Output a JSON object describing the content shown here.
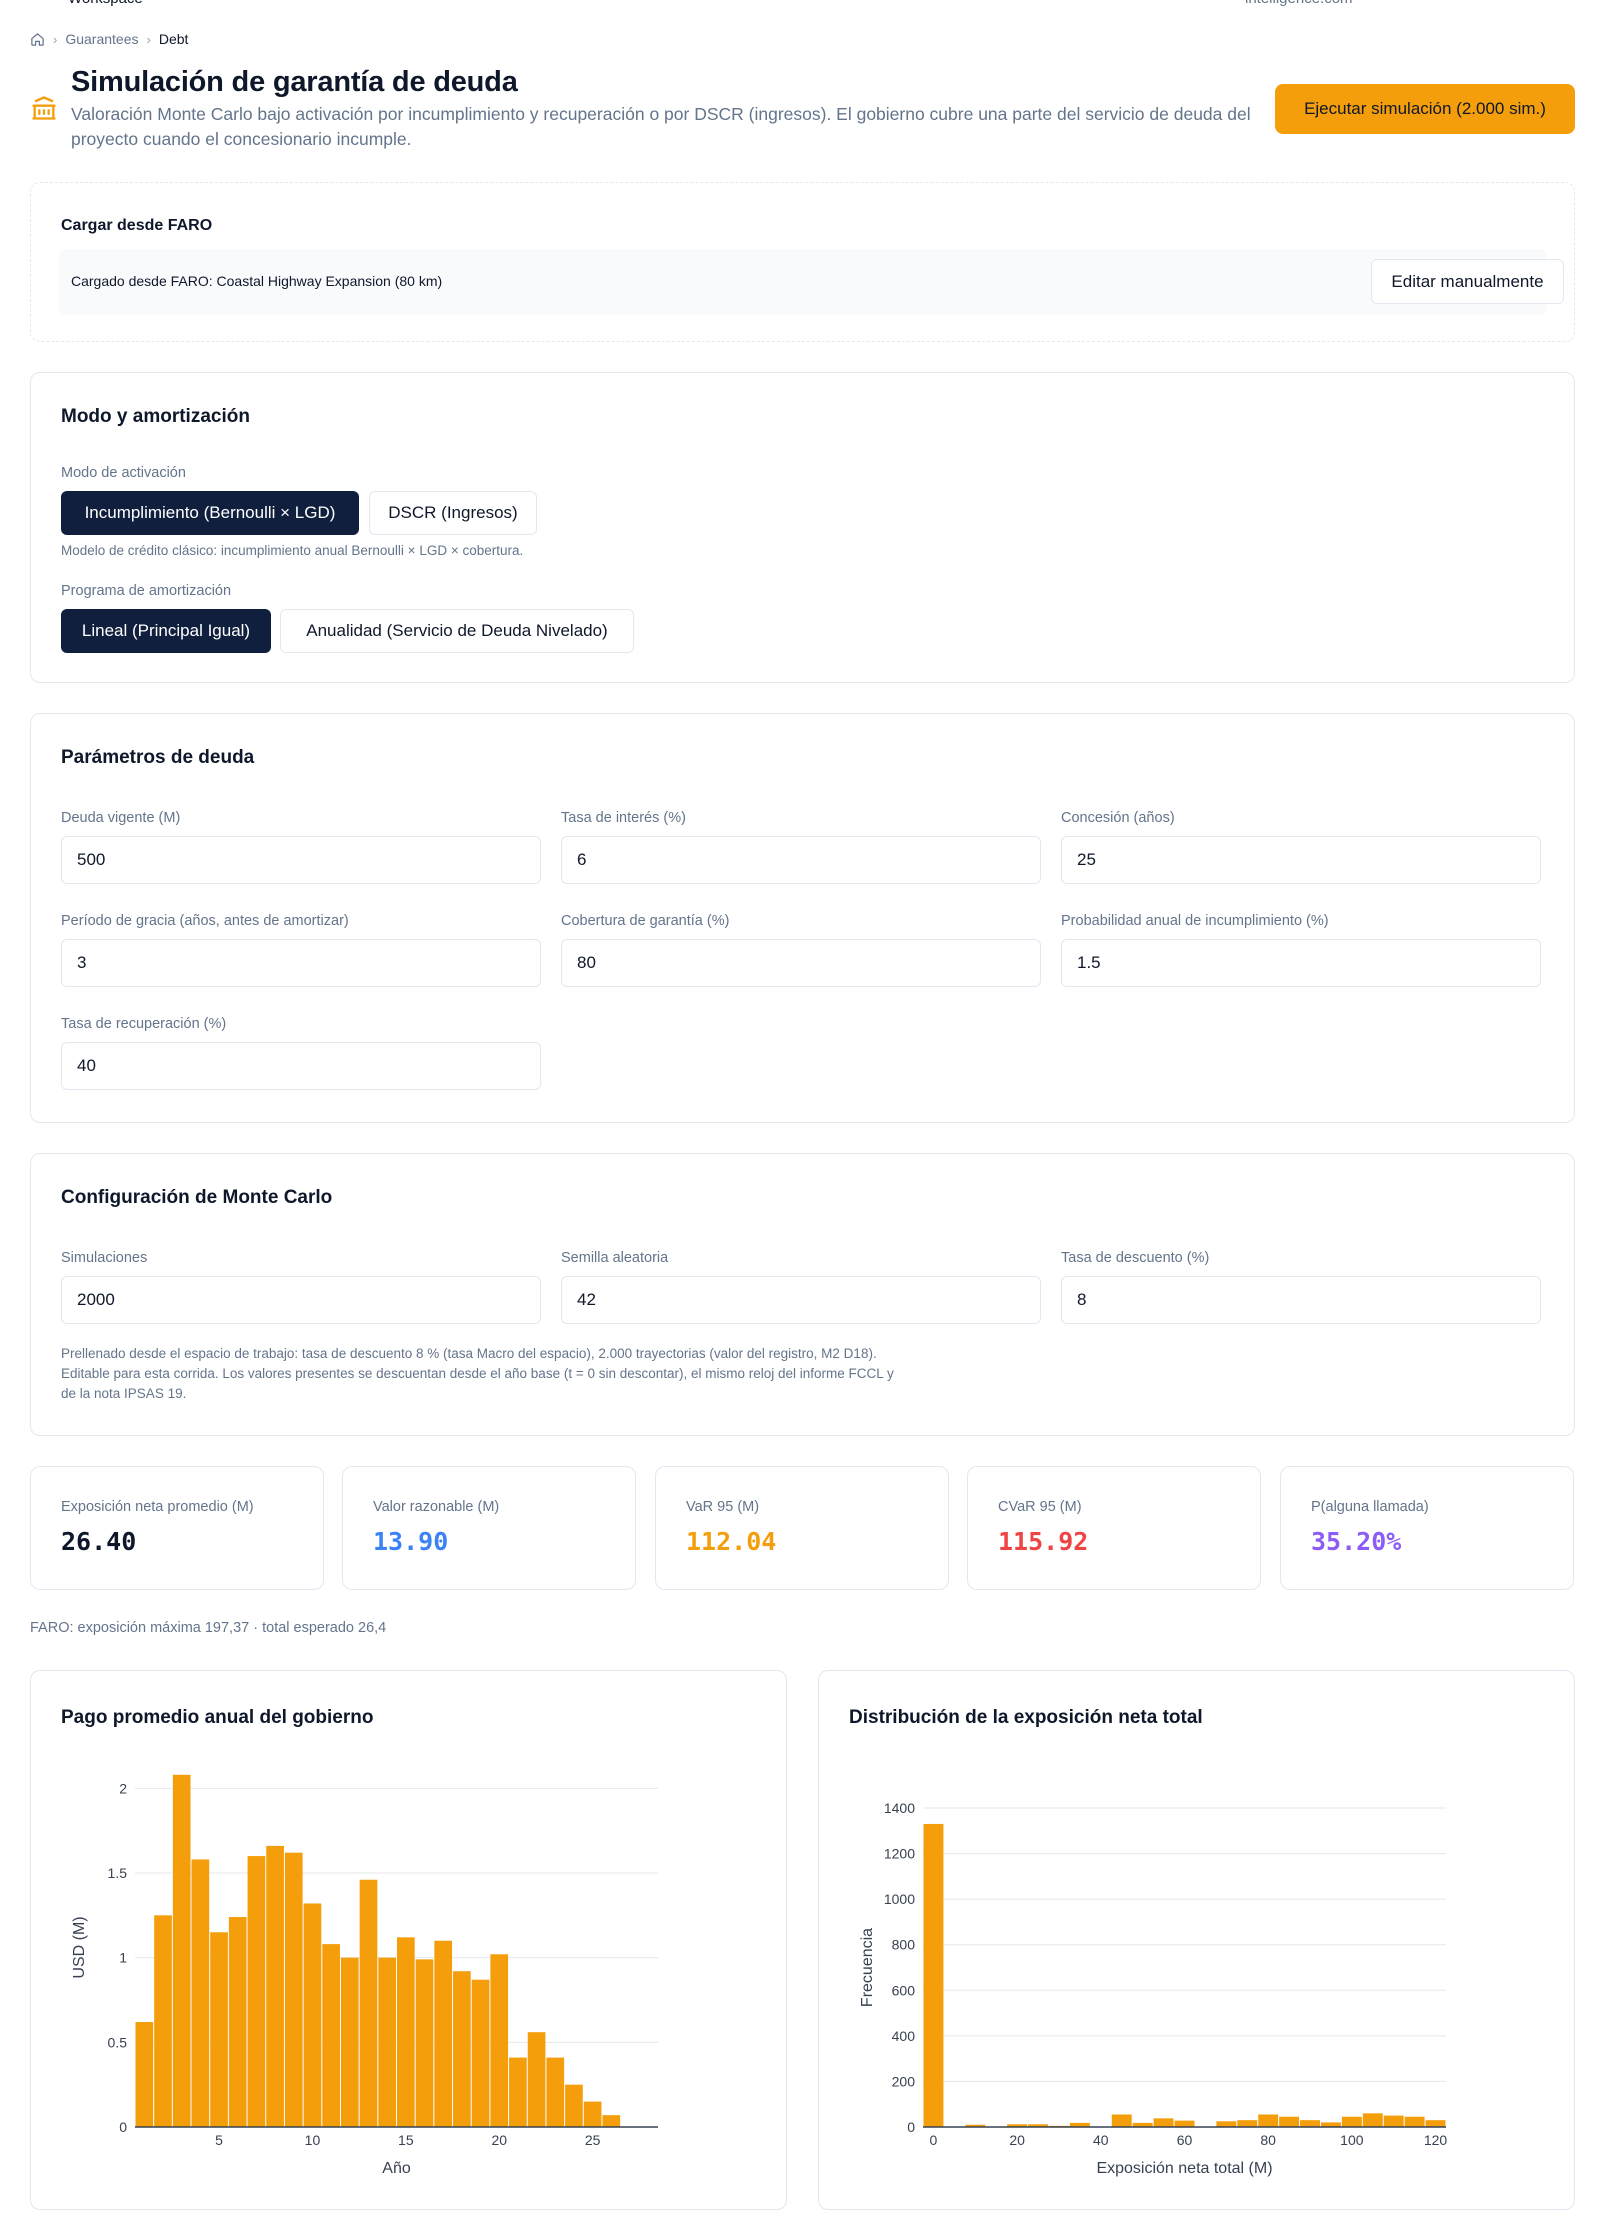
{
  "breadcrumb": {
    "items": [
      "Guarantees",
      "Debt"
    ]
  },
  "header": {
    "title": "Simulación de garantía de deuda",
    "subtitle": "Valoración Monte Carlo bajo activación por incumplimiento y recuperación o por DSCR (ingresos). El gobierno cubre una parte del servicio de deuda del proyecto cuando el concesionario incumple.",
    "run_button": "Ejecutar simulación (2.000 sim.)",
    "icon": "bank-icon"
  },
  "faro": {
    "title": "Cargar desde FARO",
    "loaded_text": "Cargado desde FARO: Coastal Highway Expansion (80 km)",
    "edit_button": "Editar manualmente"
  },
  "mode": {
    "title": "Modo y amortización",
    "activation_label": "Modo de activación",
    "activation_options": [
      "Incumplimiento (Bernoulli × LGD)",
      "DSCR (Ingresos)"
    ],
    "activation_selected": 0,
    "activation_help": "Modelo de crédito clásico: incumplimiento anual Bernoulli × LGD × cobertura.",
    "amortization_label": "Programa de amortización",
    "amortization_options": [
      "Lineal (Principal Igual)",
      "Anualidad (Servicio de Deuda Nivelado)"
    ],
    "amortization_selected": 0
  },
  "params": {
    "title": "Parámetros de deuda",
    "fields": [
      {
        "label": "Deuda vigente (M)",
        "value": "500"
      },
      {
        "label": "Tasa de interés (%)",
        "value": "6"
      },
      {
        "label": "Concesión (años)",
        "value": "25"
      },
      {
        "label": "Período de gracia (años, antes de amortizar)",
        "value": "3"
      },
      {
        "label": "Cobertura de garantía (%)",
        "value": "80"
      },
      {
        "label": "Probabilidad anual de incumplimiento (%)",
        "value": "1.5"
      },
      {
        "label": "Tasa de recuperación (%)",
        "value": "40"
      }
    ]
  },
  "monte_carlo": {
    "title": "Configuración de Monte Carlo",
    "fields": [
      {
        "label": "Simulaciones",
        "value": "2000"
      },
      {
        "label": "Semilla aleatoria",
        "value": "42"
      },
      {
        "label": "Tasa de descuento (%)",
        "value": "8"
      }
    ],
    "help_lines": [
      "Prellenado desde el espacio de trabajo: tasa de descuento 8 % (tasa Macro del espacio), 2.000 trayectorias (valor del registro, M2 D18).",
      "Editable para esta corrida. Los valores presentes se descuentan desde el año base (t = 0 sin descontar), el mismo reloj del informe FCCL y",
      "de la nota IPSAS 19."
    ]
  },
  "stats": [
    {
      "label": "Exposición neta promedio (M)",
      "value": "26.40",
      "color": "#0f172a"
    },
    {
      "label": "Valor razonable (M)",
      "value": "13.90",
      "color": "#3b82f6"
    },
    {
      "label": "VaR 95 (M)",
      "value": "112.04",
      "color": "#f59e0b"
    },
    {
      "label": "CVaR 95 (M)",
      "value": "115.92",
      "color": "#ef4444"
    },
    {
      "label": "P(alguna llamada)",
      "value": "35.20%",
      "color": "#8b5cf6"
    }
  ],
  "faro_note": "FARO: exposición máxima 197,37 · total esperado 26,4",
  "chart_data": [
    {
      "type": "bar",
      "title": "Pago promedio anual del gobierno",
      "xlabel": "Año",
      "ylabel": "USD (M)",
      "color": "#f59e0b",
      "x": [
        1,
        2,
        3,
        4,
        5,
        6,
        7,
        8,
        9,
        10,
        11,
        12,
        13,
        14,
        15,
        16,
        17,
        18,
        19,
        20,
        21,
        22,
        23,
        24,
        25,
        26,
        27,
        28
      ],
      "values": [
        0.62,
        1.25,
        2.08,
        1.58,
        1.15,
        1.24,
        1.6,
        1.66,
        1.62,
        1.32,
        1.08,
        1.0,
        1.46,
        1.0,
        1.12,
        0.99,
        1.1,
        0.92,
        0.87,
        1.02,
        0.41,
        0.56,
        0.41,
        0.25,
        0.15,
        0.07,
        0,
        0
      ],
      "xticks": [
        5,
        10,
        15,
        20,
        25
      ],
      "yticks": [
        0,
        0.5,
        1,
        1.5,
        2
      ],
      "xlim": [
        0.5,
        28.5
      ],
      "ylim": [
        0,
        2.12
      ]
    },
    {
      "type": "bar",
      "title": "Distribución de la exposición neta total",
      "xlabel": "Exposición neta total (M)",
      "ylabel": "Frecuencia",
      "color": "#f59e0b",
      "bin_width": 5,
      "x": [
        0,
        5,
        10,
        15,
        20,
        25,
        30,
        35,
        40,
        45,
        50,
        55,
        60,
        65,
        70,
        75,
        80,
        85,
        90,
        95,
        100,
        105,
        110,
        115,
        120
      ],
      "values": [
        1330,
        0,
        10,
        0,
        12,
        12,
        5,
        18,
        0,
        55,
        18,
        38,
        28,
        0,
        25,
        30,
        55,
        45,
        30,
        20,
        45,
        60,
        50,
        45,
        30
      ],
      "xticks": [
        0,
        20,
        40,
        60,
        80,
        100,
        120
      ],
      "yticks": [
        0,
        200,
        400,
        600,
        800,
        1000,
        1200,
        1400
      ],
      "xlim": [
        -2.5,
        122.5
      ],
      "ylim": [
        0,
        1400
      ]
    }
  ]
}
